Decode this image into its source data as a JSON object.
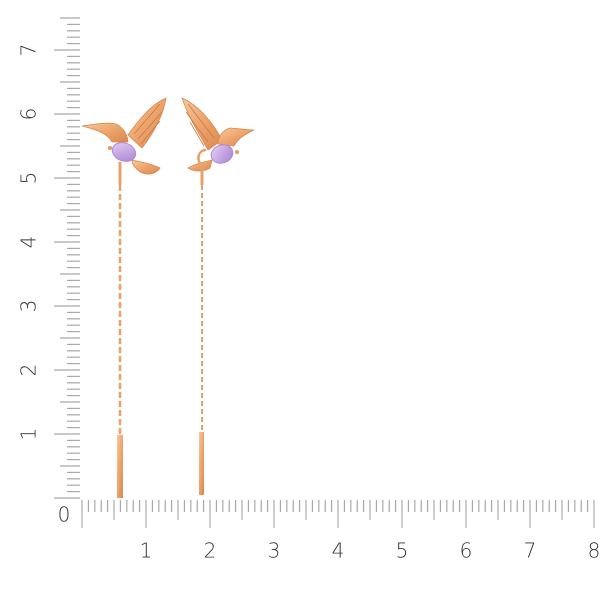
{
  "ruler": {
    "horizontal_labels": [
      "0",
      "1",
      "2",
      "3",
      "4",
      "5",
      "6",
      "7",
      "8"
    ],
    "vertical_labels": [
      "1",
      "2",
      "3",
      "4",
      "5",
      "6",
      "7"
    ],
    "unit_divisions": 10,
    "tick_color": "#a9a9a9",
    "label_color": "#333333"
  },
  "product": {
    "items": [
      "earring-left",
      "earring-right"
    ],
    "metal_color": "#f0b07a",
    "stone_color": "#c9a6e6"
  }
}
